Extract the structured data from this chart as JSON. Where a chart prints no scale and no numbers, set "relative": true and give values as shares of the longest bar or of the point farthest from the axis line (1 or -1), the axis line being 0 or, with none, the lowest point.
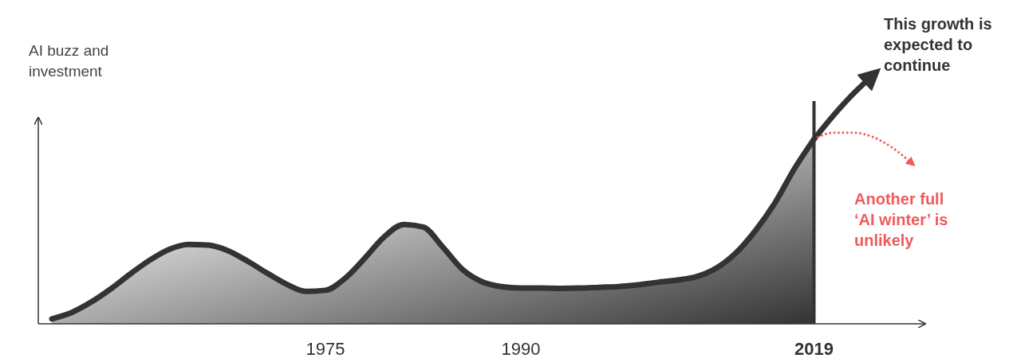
{
  "chart_data": {
    "type": "area",
    "relative": true,
    "ylabel": "AI buzz and investment",
    "categories": [
      null,
      null,
      null,
      null,
      null,
      null,
      null,
      null,
      null,
      null,
      null,
      null,
      null,
      null,
      "1975",
      null,
      null,
      null,
      null,
      null,
      null,
      null,
      null,
      null,
      "1990",
      null,
      null,
      null,
      null,
      null,
      null,
      null,
      null,
      null,
      null,
      null,
      null,
      null,
      null,
      "2019",
      null,
      null,
      null,
      null,
      null
    ],
    "series": [
      {
        "color": "#333333",
        "values": [
          0.02,
          0.045,
          0.087,
          0.14,
          0.2,
          0.256,
          0.3,
          0.32,
          0.317,
          0.295,
          0.253,
          0.205,
          0.16,
          0.131,
          0.135,
          0.183,
          0.263,
          0.35,
          0.4,
          0.39,
          0.31,
          0.22,
          0.17,
          0.15,
          0.144,
          0.144,
          0.143,
          0.144,
          0.147,
          0.15,
          0.157,
          0.167,
          0.176,
          0.19,
          0.224,
          0.285,
          0.375,
          0.487,
          0.625,
          0.744,
          null,
          null,
          null,
          null,
          null
        ]
      },
      {
        "type": "line",
        "name": "This growth is expected to continue",
        "color": "#333333",
        "values": [
          null,
          null,
          null,
          null,
          null,
          null,
          null,
          null,
          null,
          null,
          null,
          null,
          null,
          null,
          null,
          null,
          null,
          null,
          null,
          null,
          null,
          null,
          null,
          null,
          null,
          null,
          null,
          null,
          null,
          null,
          null,
          null,
          null,
          null,
          null,
          null,
          null,
          null,
          null,
          0.744,
          0.84,
          0.926,
          1.0,
          null,
          null
        ]
      },
      {
        "type": "line",
        "name": "Another full ‘AI winter’ is unlikely",
        "color": "#f05a5a",
        "line_style": "dotted",
        "values": [
          null,
          null,
          null,
          null,
          null,
          null,
          null,
          null,
          null,
          null,
          null,
          null,
          null,
          null,
          null,
          null,
          null,
          null,
          null,
          null,
          null,
          null,
          null,
          null,
          null,
          null,
          null,
          null,
          null,
          null,
          null,
          null,
          null,
          null,
          null,
          null,
          null,
          null,
          null,
          0.744,
          0.77,
          0.77,
          0.753,
          0.71,
          0.647
        ]
      }
    ],
    "ref_lines": [
      {
        "axis": "x",
        "value": "2019",
        "color": "#333333"
      }
    ],
    "legend": false
  }
}
